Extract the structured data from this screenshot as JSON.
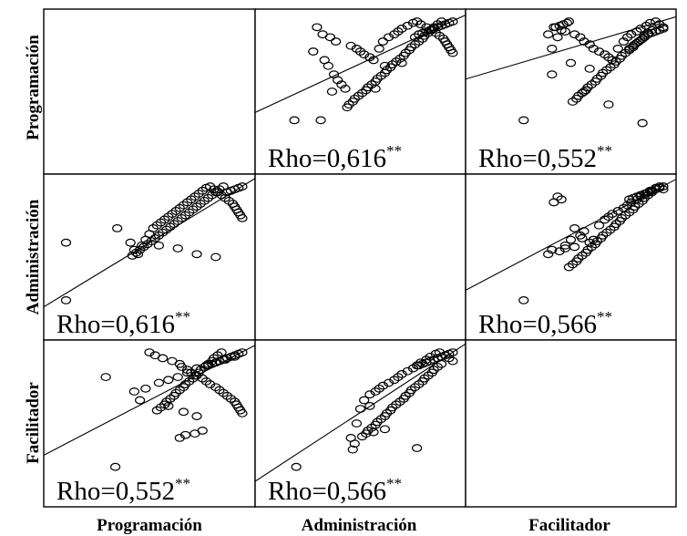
{
  "variables": [
    "Programación",
    "Administración",
    "Facilitador"
  ],
  "chart_data": {
    "type": "scatter",
    "matrix": true,
    "variables": [
      "Programación",
      "Administración",
      "Facilitador"
    ],
    "grid": false,
    "panels": [
      {
        "row": 0,
        "col": 1,
        "x_var": "Administración",
        "y_var": "Programación",
        "annotation": "Rho=0,616",
        "annotation_sup": "**",
        "fit": {
          "x": [
            0,
            1
          ],
          "y": [
            0.39,
            1.0
          ]
        },
        "points": {
          "x": [
            0.15,
            0.29,
            0.25,
            0.31,
            0.33,
            0.36,
            0.38,
            0.4,
            0.42,
            0.27,
            0.3,
            0.34,
            0.37,
            0.45,
            0.48,
            0.5,
            0.52,
            0.55,
            0.57,
            0.6,
            0.62,
            0.65,
            0.68,
            0.7,
            0.72,
            0.75,
            0.78,
            0.8,
            0.82,
            0.85,
            0.87,
            0.9,
            0.92,
            0.94,
            0.95,
            0.96,
            0.97,
            0.98,
            0.99,
            0.93,
            0.91,
            0.89,
            0.88,
            0.86,
            0.84,
            0.83,
            0.81,
            0.79,
            0.77,
            0.76,
            0.74,
            0.73,
            0.71,
            0.69,
            0.67,
            0.66,
            0.64,
            0.63,
            0.61,
            0.59,
            0.58,
            0.56,
            0.54,
            0.53,
            0.51,
            0.49,
            0.47,
            0.46,
            0.44,
            0.43,
            0.99,
            0.97,
            0.95,
            0.93,
            0.91,
            0.89,
            0.87,
            0.85,
            0.83,
            0.81,
            0.79,
            0.72,
            0.63,
            0.35,
            0.58
          ],
          "y": [
            0.3,
            0.3,
            0.78,
            0.72,
            0.68,
            0.62,
            0.58,
            0.55,
            0.52,
            0.95,
            0.9,
            0.88,
            0.85,
            0.82,
            0.8,
            0.78,
            0.76,
            0.74,
            0.72,
            0.8,
            0.85,
            0.88,
            0.9,
            0.92,
            0.94,
            0.96,
            0.98,
            0.99,
            0.97,
            0.95,
            0.93,
            0.91,
            0.89,
            0.87,
            0.85,
            0.83,
            0.81,
            0.79,
            0.77,
            0.99,
            0.97,
            0.95,
            0.93,
            0.91,
            0.89,
            0.87,
            0.85,
            0.83,
            0.81,
            0.79,
            0.77,
            0.75,
            0.73,
            0.71,
            0.69,
            0.67,
            0.65,
            0.63,
            0.61,
            0.59,
            0.57,
            0.55,
            0.53,
            0.51,
            0.49,
            0.47,
            0.45,
            0.43,
            0.41,
            0.39,
            0.99,
            0.98,
            0.97,
            0.96,
            0.95,
            0.94,
            0.93,
            0.92,
            0.91,
            0.9,
            0.88,
            0.7,
            0.68,
            0.5,
            0.52
          ]
        }
      },
      {
        "row": 0,
        "col": 2,
        "x_var": "Facilitador",
        "y_var": "Programación",
        "annotation": "Rho=0,552",
        "annotation_sup": "**",
        "fit": {
          "x": [
            0,
            1
          ],
          "y": [
            0.61,
            1.0
          ]
        },
        "points": {
          "x": [
            0.25,
            0.38,
            0.4,
            0.41,
            0.43,
            0.45,
            0.47,
            0.5,
            0.52,
            0.55,
            0.57,
            0.6,
            0.62,
            0.65,
            0.68,
            0.7,
            0.72,
            0.75,
            0.78,
            0.8,
            0.82,
            0.85,
            0.87,
            0.9,
            0.92,
            0.95,
            0.97,
            0.99,
            0.93,
            0.91,
            0.89,
            0.88,
            0.86,
            0.84,
            0.83,
            0.81,
            0.79,
            0.77,
            0.76,
            0.74,
            0.73,
            0.71,
            0.69,
            0.67,
            0.66,
            0.64,
            0.63,
            0.61,
            0.59,
            0.58,
            0.56,
            0.54,
            0.53,
            0.51,
            0.49,
            0.48,
            0.46,
            0.44,
            0.42,
            0.99,
            0.97,
            0.95,
            0.93,
            0.91,
            0.89,
            0.87,
            0.85,
            0.83,
            0.81,
            0.7,
            0.57,
            0.4,
            0.88,
            0.6
          ],
          "y": [
            0.3,
            0.9,
            0.8,
            0.95,
            0.88,
            0.93,
            0.92,
            0.7,
            0.9,
            0.88,
            0.85,
            0.83,
            0.8,
            0.78,
            0.76,
            0.74,
            0.72,
            0.8,
            0.85,
            0.88,
            0.9,
            0.92,
            0.94,
            0.96,
            0.98,
            0.99,
            0.97,
            0.95,
            0.93,
            0.91,
            0.89,
            0.87,
            0.85,
            0.83,
            0.81,
            0.79,
            0.77,
            0.75,
            0.73,
            0.71,
            0.69,
            0.67,
            0.65,
            0.63,
            0.61,
            0.59,
            0.57,
            0.55,
            0.53,
            0.51,
            0.49,
            0.47,
            0.45,
            0.43,
            0.99,
            0.98,
            0.97,
            0.96,
            0.95,
            0.94,
            0.93,
            0.92,
            0.91,
            0.9,
            0.88,
            0.86,
            0.84,
            0.82,
            0.8,
            0.41,
            0.5,
            0.62,
            0.28,
            0.66
          ]
        }
      },
      {
        "row": 1,
        "col": 0,
        "x_var": "Programación",
        "y_var": "Administración",
        "annotation": "Rho=0,616",
        "annotation_sup": "**",
        "fit": {
          "x": [
            0,
            1
          ],
          "y": [
            0.2,
            1.0
          ]
        },
        "points": {
          "x": [
            0.06,
            0.06,
            0.33,
            0.4,
            0.42,
            0.44,
            0.46,
            0.48,
            0.5,
            0.52,
            0.54,
            0.56,
            0.58,
            0.6,
            0.62,
            0.64,
            0.66,
            0.68,
            0.7,
            0.72,
            0.74,
            0.76,
            0.78,
            0.8,
            0.82,
            0.84,
            0.86,
            0.88,
            0.9,
            0.92,
            0.94,
            0.95,
            0.96,
            0.97,
            0.98,
            0.99,
            0.89,
            0.87,
            0.85,
            0.83,
            0.81,
            0.79,
            0.77,
            0.75,
            0.73,
            0.71,
            0.69,
            0.67,
            0.65,
            0.63,
            0.61,
            0.59,
            0.57,
            0.55,
            0.53,
            0.51,
            0.49,
            0.47,
            0.45,
            0.43,
            0.41,
            0.99,
            0.97,
            0.95,
            0.93,
            0.91,
            0.85,
            0.75,
            0.65,
            0.55
          ],
          "y": [
            0.2,
            0.6,
            0.7,
            0.6,
            0.55,
            0.52,
            0.58,
            0.62,
            0.66,
            0.7,
            0.72,
            0.74,
            0.76,
            0.78,
            0.8,
            0.82,
            0.84,
            0.86,
            0.88,
            0.9,
            0.92,
            0.94,
            0.96,
            0.98,
            0.99,
            0.97,
            0.95,
            0.93,
            0.91,
            0.89,
            0.87,
            0.85,
            0.83,
            0.81,
            0.79,
            0.77,
            0.99,
            0.97,
            0.95,
            0.93,
            0.91,
            0.89,
            0.87,
            0.85,
            0.83,
            0.81,
            0.79,
            0.77,
            0.75,
            0.73,
            0.71,
            0.69,
            0.67,
            0.65,
            0.63,
            0.61,
            0.59,
            0.57,
            0.55,
            0.53,
            0.51,
            0.99,
            0.98,
            0.97,
            0.96,
            0.95,
            0.5,
            0.52,
            0.56,
            0.58
          ]
        }
      },
      {
        "row": 1,
        "col": 2,
        "x_var": "Facilitador",
        "y_var": "Administración",
        "annotation": "Rho=0,566",
        "annotation_sup": "**",
        "fit": {
          "x": [
            0,
            1
          ],
          "y": [
            0.31,
            1.0
          ]
        },
        "points": {
          "x": [
            0.25,
            0.38,
            0.4,
            0.41,
            0.43,
            0.45,
            0.47,
            0.5,
            0.52,
            0.55,
            0.57,
            0.6,
            0.62,
            0.65,
            0.68,
            0.7,
            0.72,
            0.75,
            0.78,
            0.8,
            0.82,
            0.85,
            0.87,
            0.9,
            0.92,
            0.95,
            0.97,
            0.99,
            0.93,
            0.91,
            0.89,
            0.88,
            0.86,
            0.84,
            0.83,
            0.81,
            0.79,
            0.77,
            0.76,
            0.74,
            0.73,
            0.71,
            0.69,
            0.67,
            0.66,
            0.64,
            0.63,
            0.61,
            0.59,
            0.58,
            0.56,
            0.54,
            0.53,
            0.51,
            0.49,
            0.99,
            0.97,
            0.95,
            0.93,
            0.91,
            0.89,
            0.87,
            0.85,
            0.83,
            0.81,
            0.44,
            0.47,
            0.52,
            0.56
          ],
          "y": [
            0.2,
            0.52,
            0.55,
            0.88,
            0.92,
            0.9,
            0.58,
            0.62,
            0.7,
            0.65,
            0.68,
            0.6,
            0.62,
            0.72,
            0.76,
            0.78,
            0.8,
            0.82,
            0.84,
            0.86,
            0.88,
            0.9,
            0.92,
            0.94,
            0.96,
            0.98,
            0.99,
            0.97,
            0.95,
            0.93,
            0.91,
            0.89,
            0.87,
            0.85,
            0.83,
            0.81,
            0.79,
            0.77,
            0.75,
            0.73,
            0.71,
            0.69,
            0.67,
            0.65,
            0.63,
            0.61,
            0.59,
            0.57,
            0.55,
            0.53,
            0.51,
            0.49,
            0.47,
            0.45,
            0.43,
            0.99,
            0.98,
            0.97,
            0.96,
            0.95,
            0.94,
            0.93,
            0.92,
            0.91,
            0.9,
            0.54,
            0.56,
            0.57,
            0.63
          ]
        }
      },
      {
        "row": 2,
        "col": 0,
        "x_var": "Programación",
        "y_var": "Facilitador",
        "annotation": "Rho=0,552",
        "annotation_sup": "**",
        "fit": {
          "x": [
            0,
            1
          ],
          "y": [
            0.32,
            1.0
          ]
        },
        "points": {
          "x": [
            0.27,
            0.32,
            0.42,
            0.48,
            0.55,
            0.6,
            0.65,
            0.7,
            0.75,
            0.8,
            0.85,
            0.9,
            0.95,
            0.5,
            0.53,
            0.57,
            0.62,
            0.66,
            0.67,
            0.7,
            0.72,
            0.75,
            0.78,
            0.8,
            0.82,
            0.85,
            0.87,
            0.89,
            0.91,
            0.93,
            0.95,
            0.96,
            0.97,
            0.98,
            0.99,
            0.88,
            0.86,
            0.84,
            0.83,
            0.81,
            0.79,
            0.77,
            0.76,
            0.74,
            0.73,
            0.71,
            0.69,
            0.68,
            0.66,
            0.64,
            0.63,
            0.61,
            0.59,
            0.58,
            0.56,
            0.54,
            0.99,
            0.97,
            0.95,
            0.93,
            0.91,
            0.89,
            0.87,
            0.85,
            0.83,
            0.81,
            0.45,
            0.6,
            0.68,
            0.75,
            0.78,
            0.66,
            0.69,
            0.74
          ],
          "y": [
            0.82,
            0.2,
            0.72,
            0.74,
            0.78,
            0.8,
            0.82,
            0.85,
            0.88,
            0.9,
            0.92,
            0.94,
            0.96,
            0.99,
            0.97,
            0.95,
            0.93,
            0.91,
            0.89,
            0.87,
            0.85,
            0.83,
            0.81,
            0.79,
            0.77,
            0.75,
            0.73,
            0.71,
            0.69,
            0.67,
            0.65,
            0.63,
            0.61,
            0.59,
            0.57,
            0.99,
            0.97,
            0.95,
            0.93,
            0.91,
            0.89,
            0.87,
            0.85,
            0.83,
            0.81,
            0.79,
            0.77,
            0.75,
            0.73,
            0.71,
            0.69,
            0.67,
            0.65,
            0.63,
            0.61,
            0.59,
            0.99,
            0.98,
            0.97,
            0.96,
            0.95,
            0.94,
            0.93,
            0.92,
            0.91,
            0.9,
            0.66,
            0.62,
            0.58,
            0.55,
            0.45,
            0.4,
            0.42,
            0.43
          ]
        }
      },
      {
        "row": 2,
        "col": 1,
        "x_var": "Administración",
        "y_var": "Facilitador",
        "annotation": "Rho=0,566",
        "annotation_sup": "**",
        "fit": {
          "x": [
            0,
            1
          ],
          "y": [
            0.15,
            1.0
          ]
        },
        "points": {
          "x": [
            0.16,
            0.45,
            0.48,
            0.5,
            0.52,
            0.55,
            0.58,
            0.6,
            0.62,
            0.65,
            0.68,
            0.7,
            0.72,
            0.75,
            0.78,
            0.8,
            0.82,
            0.85,
            0.87,
            0.9,
            0.92,
            0.95,
            0.97,
            0.99,
            0.93,
            0.91,
            0.89,
            0.88,
            0.86,
            0.84,
            0.83,
            0.81,
            0.79,
            0.77,
            0.76,
            0.74,
            0.73,
            0.71,
            0.69,
            0.67,
            0.66,
            0.64,
            0.63,
            0.61,
            0.59,
            0.58,
            0.56,
            0.54,
            0.53,
            0.51,
            0.99,
            0.97,
            0.95,
            0.93,
            0.91,
            0.89,
            0.87,
            0.85,
            0.83,
            0.81,
            0.46,
            0.47,
            0.57,
            0.63,
            0.8,
            0.55
          ],
          "y": [
            0.2,
            0.4,
            0.5,
            0.6,
            0.66,
            0.7,
            0.72,
            0.74,
            0.76,
            0.78,
            0.8,
            0.82,
            0.84,
            0.86,
            0.88,
            0.9,
            0.92,
            0.94,
            0.96,
            0.98,
            0.99,
            0.97,
            0.95,
            0.93,
            0.91,
            0.89,
            0.87,
            0.85,
            0.83,
            0.81,
            0.79,
            0.77,
            0.75,
            0.73,
            0.71,
            0.69,
            0.67,
            0.65,
            0.63,
            0.61,
            0.59,
            0.57,
            0.55,
            0.53,
            0.51,
            0.49,
            0.47,
            0.45,
            0.43,
            0.41,
            0.99,
            0.98,
            0.97,
            0.96,
            0.95,
            0.94,
            0.93,
            0.92,
            0.91,
            0.9,
            0.32,
            0.36,
            0.44,
            0.46,
            0.33,
            0.62
          ]
        }
      }
    ]
  }
}
